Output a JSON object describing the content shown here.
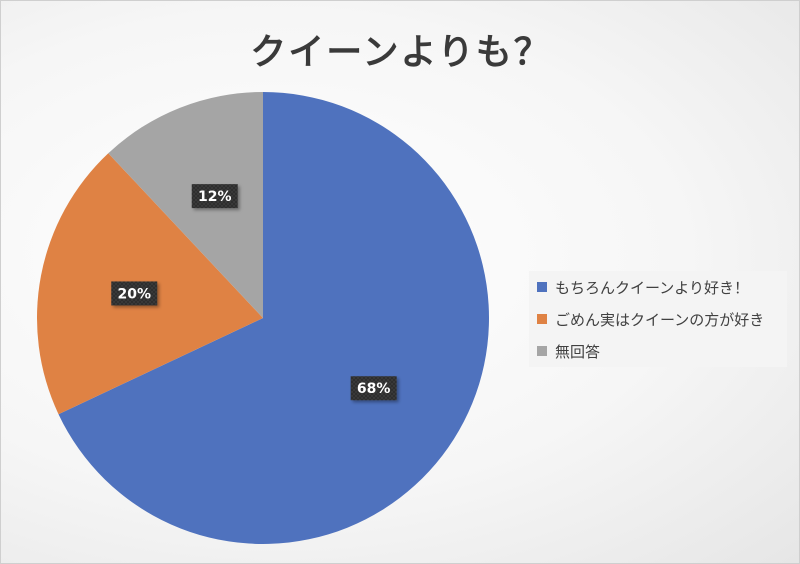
{
  "chart_data": {
    "type": "pie",
    "title": "クイーンよりも？",
    "categories": [
      "もちろんクイーンより好き！",
      "ごめん実はクイーンの方が好き",
      "無回答"
    ],
    "values": [
      68,
      20,
      12
    ],
    "data_labels": [
      "68%",
      "20%",
      "12%"
    ],
    "colors": [
      "#4f72be",
      "#df8244",
      "#a5a5a5"
    ],
    "legend_placement": "right"
  }
}
